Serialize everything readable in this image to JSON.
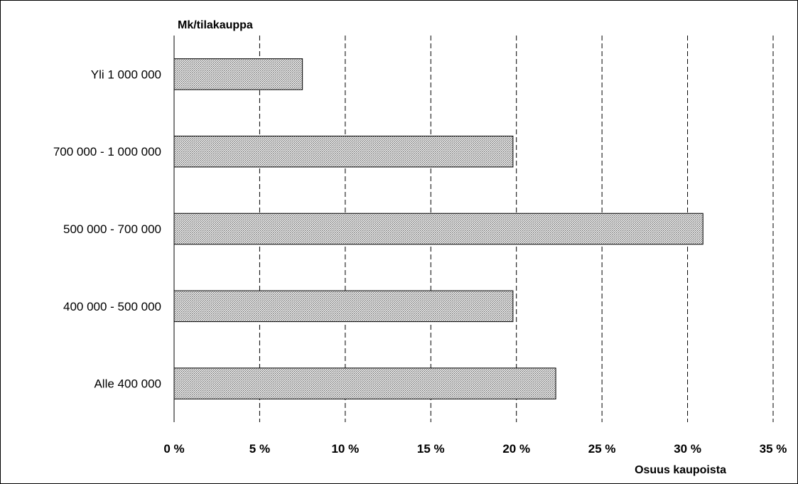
{
  "chart_data": {
    "type": "bar",
    "orientation": "horizontal",
    "categories": [
      "Yli 1 000 000",
      "700 000 - 1 000 000",
      "500 000 - 700 000",
      "400 000 - 500 000",
      "Alle 400 000"
    ],
    "series": [
      {
        "values": [
          7.5,
          19.8,
          30.9,
          19.8,
          22.3
        ]
      }
    ],
    "ylabel": "Mk/tilakauppa",
    "xlabel": "Osuus kaupoista",
    "xlim": [
      0,
      35
    ],
    "xticks": [
      0,
      5,
      10,
      15,
      20,
      25,
      30,
      35
    ],
    "xtick_labels": [
      "0 %",
      "5 %",
      "10 %",
      "15 %",
      "20 %",
      "25 %",
      "30 %",
      "35 %"
    ],
    "grid": "vertical dashed",
    "bar_fill": "hatched grey",
    "colors": {
      "bar_stroke": "#000000",
      "grid": "#000000"
    }
  }
}
